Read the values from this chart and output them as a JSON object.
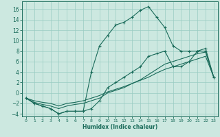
{
  "xlabel": "Humidex (Indice chaleur)",
  "bg_color": "#cce8e0",
  "grid_color": "#99ccc2",
  "line_color": "#1a6b5a",
  "xlim": [
    -0.5,
    23.5
  ],
  "ylim": [
    -4.5,
    17.5
  ],
  "xticks": [
    0,
    1,
    2,
    3,
    4,
    5,
    6,
    7,
    8,
    9,
    10,
    11,
    12,
    13,
    14,
    15,
    16,
    17,
    18,
    19,
    20,
    21,
    22,
    23
  ],
  "yticks": [
    -4,
    -2,
    0,
    2,
    4,
    6,
    8,
    10,
    12,
    14,
    16
  ],
  "line_main_x": [
    0,
    1,
    2,
    3,
    4,
    5,
    6,
    7,
    8,
    9,
    10,
    11,
    12,
    13,
    14,
    15,
    16,
    17,
    18,
    19,
    20,
    21,
    22,
    23
  ],
  "line_main_y": [
    -1,
    -2,
    -2.5,
    -3,
    -4,
    -3.5,
    -3.5,
    -3.5,
    4,
    9,
    11,
    13,
    13.5,
    14.5,
    15.8,
    16.5,
    14.5,
    12.5,
    9,
    8,
    8,
    8,
    8.5,
    3
  ],
  "line_low_x": [
    0,
    1,
    2,
    3,
    4,
    5,
    6,
    7,
    8,
    9,
    10,
    11,
    12,
    13,
    14,
    15,
    16,
    17,
    18,
    19,
    20,
    21,
    22,
    23
  ],
  "line_low_y": [
    -1,
    -2,
    -2.5,
    -3,
    -4,
    -3.5,
    -3.5,
    -3.5,
    -3,
    -1.5,
    1,
    2,
    3,
    4,
    5,
    7,
    7.5,
    8,
    5,
    5,
    6,
    8,
    8,
    3
  ],
  "line_diag1_x": [
    0,
    1,
    2,
    3,
    4,
    5,
    6,
    7,
    8,
    9,
    10,
    11,
    12,
    13,
    14,
    15,
    16,
    17,
    18,
    19,
    20,
    21,
    22,
    23
  ],
  "line_diag1_y": [
    -1,
    -1.8,
    -2.2,
    -2.5,
    -3,
    -2.5,
    -2.2,
    -2.0,
    -1.5,
    -1,
    0,
    0.5,
    1.0,
    1.8,
    2.5,
    3.5,
    4.5,
    5.5,
    6.0,
    6.5,
    7.0,
    7.5,
    7.8,
    3
  ],
  "line_diag2_x": [
    0,
    1,
    2,
    3,
    4,
    5,
    6,
    7,
    8,
    9,
    10,
    11,
    12,
    13,
    14,
    15,
    16,
    17,
    18,
    19,
    20,
    21,
    22,
    23
  ],
  "line_diag2_y": [
    -1,
    -1.5,
    -1.8,
    -2.0,
    -2.5,
    -2.0,
    -1.8,
    -1.5,
    -1.0,
    -0.5,
    0.2,
    0.7,
    1.2,
    1.8,
    2.4,
    3.0,
    3.8,
    4.5,
    5.0,
    5.5,
    6.0,
    6.5,
    7.0,
    3
  ]
}
